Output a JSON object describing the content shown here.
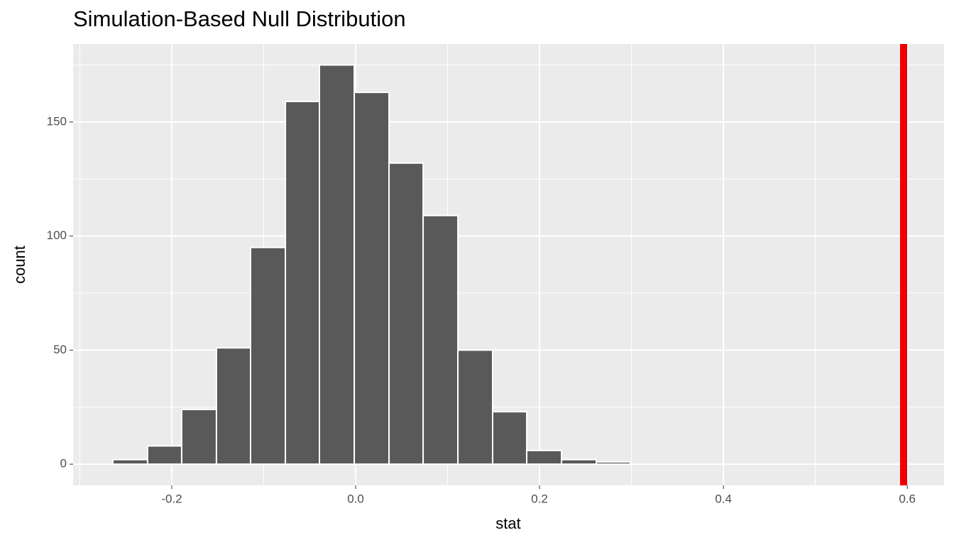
{
  "chart_data": {
    "type": "histogram",
    "title": "Simulation-Based Null Distribution",
    "x_label": "stat",
    "y_label": "count",
    "bins": [
      -0.2641,
      -0.2263,
      -0.1892,
      -0.1514,
      -0.1143,
      -0.0764,
      -0.0394,
      -0.0015,
      0.0363,
      0.0734,
      0.1112,
      0.149,
      0.1861,
      0.2239,
      0.2618,
      0.2988
    ],
    "counts": [
      2,
      8,
      24,
      51,
      95,
      159,
      175,
      163,
      132,
      109,
      50,
      23,
      6,
      2,
      1
    ],
    "color": "#595959",
    "edge_color": "#ffffff",
    "observed_stat": 0.596,
    "observed_color": "#ee0000",
    "xlim": [
      -0.3073,
      0.64
    ],
    "ylim": [
      -9.3,
      184.2
    ],
    "xticks": [
      {
        "value": -0.2,
        "label": "-0.2"
      },
      {
        "value": 0,
        "label": "0.0"
      },
      {
        "value": 0.2,
        "label": "0.2"
      },
      {
        "value": 0.4,
        "label": "0.4"
      },
      {
        "value": 0.6,
        "label": "0.6"
      }
    ],
    "yticks": [
      0,
      50,
      100,
      150
    ],
    "xminor": [
      -0.3,
      -0.1,
      0.1,
      0.3,
      0.5
    ],
    "yminor": [
      25,
      75,
      125,
      175
    ],
    "grid": true
  }
}
